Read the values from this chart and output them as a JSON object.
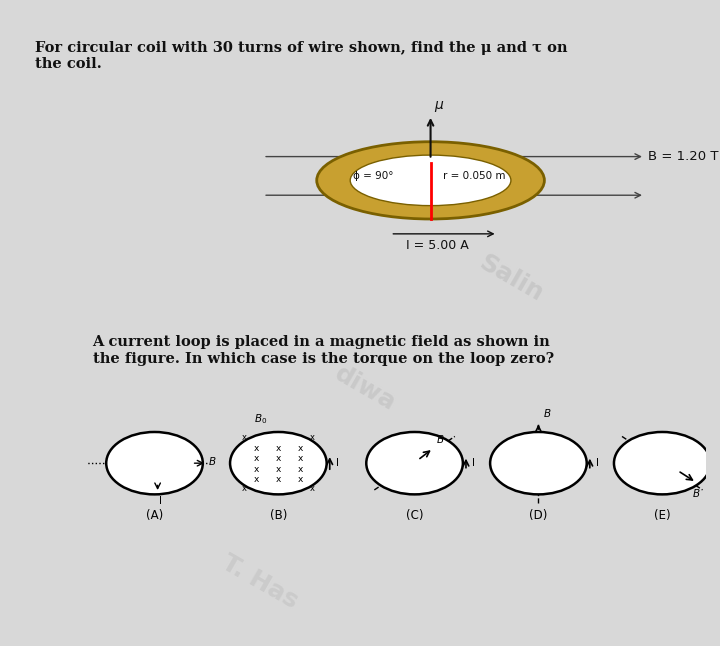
{
  "bg_color": "#d8d8d8",
  "panel1_bg": "#ffffff",
  "panel2_bg": "#f0f0f0",
  "title1": "For circular coil with 30 turns of wire shown, find the μ and τ on\nthe coil.",
  "title2": "A current loop is placed in a magnetic field as shown in\nthe figure. In which case is the torque on the loop zero?",
  "coil_label_phi": "ϕ = 90°",
  "coil_label_r": "r = 0.050 m",
  "coil_label_B": "B = 1.20 T",
  "coil_label_I": "I = 5.00 A",
  "coil_label_mu": "μ",
  "watermark1": "Salin",
  "watermark2": "diwa",
  "watermark3": "T. Has",
  "cases": [
    "(A)",
    "(B)",
    "(C)",
    "(D)",
    "(E)"
  ],
  "coil_color": "#c8a030",
  "coil_edge_color": "#7a6000",
  "text_color": "#111111",
  "arrow_color": "#111111",
  "B_field_line_color": "#444444"
}
